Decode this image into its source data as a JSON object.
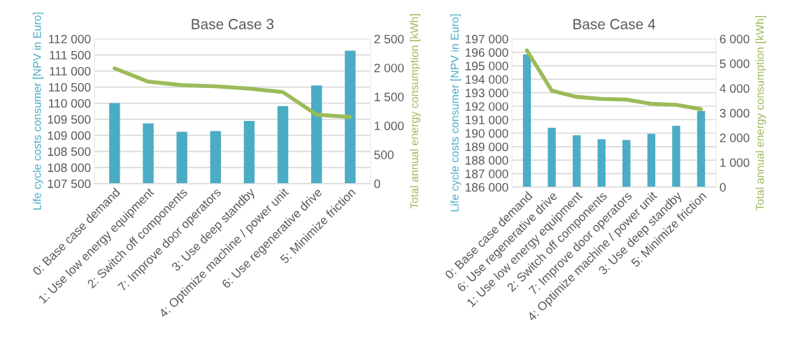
{
  "chart_data": [
    {
      "type": "bar",
      "title": "Base Case 3",
      "ylabel": "Life cycle costs consumer [NPV in Euro]",
      "y2label": "Total annual energy consumption [kWh]",
      "categories": [
        "0: Base case demand",
        "1: Use low energy equipment",
        "2: Switch off components",
        "7: Improve door operators",
        "3: Use deep standby",
        "4: Optimize machine / power unit",
        "6: Use regenerative drive",
        "5: Minimize friction"
      ],
      "series": [
        {
          "type": "bar",
          "color": "#4bacc6",
          "values": [
            110000,
            109370,
            109110,
            109130,
            109450,
            109910,
            110550,
            111630
          ]
        },
        {
          "type": "line",
          "axis": "y2",
          "color": "#9bbb59",
          "values": [
            1990,
            1760,
            1700,
            1680,
            1640,
            1580,
            1190,
            1150
          ]
        }
      ],
      "ylim": [
        107500,
        112000
      ],
      "yticks": [
        {
          "value": 107500,
          "label": "107 500"
        },
        {
          "value": 108000,
          "label": "108 000"
        },
        {
          "value": 108500,
          "label": "108 500"
        },
        {
          "value": 109000,
          "label": "109 000"
        },
        {
          "value": 109500,
          "label": "109 500"
        },
        {
          "value": 110000,
          "label": "110 000"
        },
        {
          "value": 110500,
          "label": "110 500"
        },
        {
          "value": 111000,
          "label": "111 000"
        },
        {
          "value": 111500,
          "label": "111 500"
        },
        {
          "value": 112000,
          "label": "112 000"
        }
      ],
      "y2lim": [
        0,
        2500
      ],
      "y2ticks": [
        0,
        500,
        {
          "value": 1000,
          "label": "1 000"
        },
        {
          "value": 1500,
          "label": "1 500"
        },
        {
          "value": 2000,
          "label": "2 000"
        },
        {
          "value": 2500,
          "label": "2 500"
        }
      ],
      "grid": "y",
      "legend": false
    },
    {
      "type": "bar",
      "title": "Base Case 4",
      "ylabel": "Life cycle costs consumer [NPV in Euro]",
      "y2label": "Total annual energy consumption [kWh]",
      "categories": [
        "0: Base case demand",
        "6: Use regenerative drive",
        "1: Use low energy equipment",
        "2: Switch off components",
        "7: Improve door operators",
        "4: Optimize machine / power unit",
        "3: Use deep standby",
        "5: Minimize friction"
      ],
      "series": [
        {
          "type": "bar",
          "color": "#4bacc6",
          "values": [
            195850,
            190400,
            189850,
            189550,
            189500,
            189950,
            190550,
            191650
          ]
        },
        {
          "type": "line",
          "axis": "y2",
          "color": "#9bbb59",
          "values": [
            5530,
            3900,
            3650,
            3570,
            3540,
            3370,
            3330,
            3150
          ]
        }
      ],
      "ylim": [
        186000,
        197000
      ],
      "yticks": [
        {
          "value": 186000,
          "label": "186 000"
        },
        {
          "value": 187000,
          "label": "187 000"
        },
        {
          "value": 188000,
          "label": "188 000"
        },
        {
          "value": 189000,
          "label": "189 000"
        },
        {
          "value": 190000,
          "label": "190 000"
        },
        {
          "value": 191000,
          "label": "191 000"
        },
        {
          "value": 192000,
          "label": "192 000"
        },
        {
          "value": 193000,
          "label": "193 000"
        },
        {
          "value": 194000,
          "label": "194 000"
        },
        {
          "value": 195000,
          "label": "195 000"
        },
        {
          "value": 196000,
          "label": "196 000"
        },
        {
          "value": 197000,
          "label": "197 000"
        }
      ],
      "y2lim": [
        0,
        6000
      ],
      "y2ticks": [
        0,
        {
          "value": 1000,
          "label": "1 000"
        },
        {
          "value": 2000,
          "label": "2 000"
        },
        {
          "value": 3000,
          "label": "3 000"
        },
        {
          "value": 4000,
          "label": "4 000"
        },
        {
          "value": 5000,
          "label": "5 000"
        },
        {
          "value": 6000,
          "label": "6 000"
        }
      ],
      "grid": "y",
      "legend": false
    }
  ]
}
